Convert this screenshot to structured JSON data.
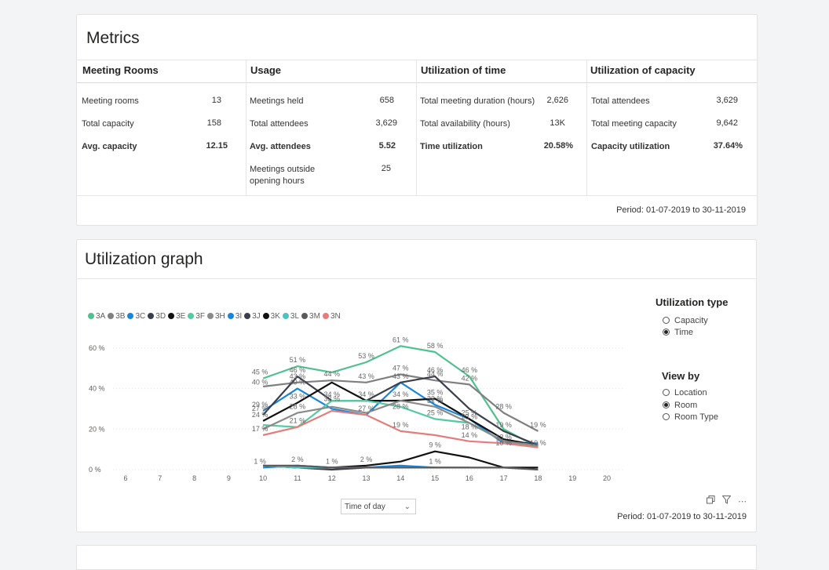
{
  "metrics": {
    "title": "Metrics",
    "columns": [
      {
        "header": "Meeting Rooms",
        "rows": [
          {
            "label": "Meeting rooms",
            "value": "13",
            "bold": false
          },
          {
            "label": "Total capacity",
            "value": "158",
            "bold": false
          },
          {
            "label": "Avg. capacity",
            "value": "12.15",
            "bold": true
          }
        ]
      },
      {
        "header": "Usage",
        "rows": [
          {
            "label": "Meetings held",
            "value": "658",
            "bold": false
          },
          {
            "label": "Total attendees",
            "value": "3,629",
            "bold": false
          },
          {
            "label": "Avg. attendees",
            "value": "5.52",
            "bold": true
          },
          {
            "label": "Meetings outside opening hours",
            "value": "25",
            "bold": false
          }
        ]
      },
      {
        "header": "Utilization of time",
        "rows": [
          {
            "label": "Total meeting duration (hours)",
            "value": "2,626",
            "bold": false
          },
          {
            "label": "Total availability (hours)",
            "value": "13K",
            "bold": false
          },
          {
            "label": "Time utilization",
            "value": "20.58%",
            "bold": true
          }
        ]
      },
      {
        "header": "Utilization of capacity",
        "rows": [
          {
            "label": "Total attendees",
            "value": "3,629",
            "bold": false
          },
          {
            "label": "Total meeting capacity",
            "value": "9,642",
            "bold": false
          },
          {
            "label": "Capacity utilization",
            "value": "37.64%",
            "bold": true
          }
        ]
      }
    ],
    "period": "Period: 01-07-2019 to 30-11-2019"
  },
  "graph": {
    "title": "Utilization graph",
    "period": "Period: 01-07-2019 to 30-11-2019",
    "axis_dropdown": "Time of day",
    "utilization_type": {
      "title": "Utilization type",
      "options": [
        {
          "label": "Capacity",
          "selected": false
        },
        {
          "label": "Time",
          "selected": true
        }
      ]
    },
    "view_by": {
      "title": "View by",
      "options": [
        {
          "label": "Location",
          "selected": false
        },
        {
          "label": "Room",
          "selected": true
        },
        {
          "label": "Room Type",
          "selected": false
        }
      ]
    },
    "icons": [
      "copy-icon",
      "filter-icon",
      "more-options-icon"
    ]
  },
  "chart_data": {
    "type": "line",
    "x": [
      6,
      7,
      8,
      9,
      10,
      11,
      12,
      13,
      14,
      15,
      16,
      17,
      18,
      19,
      20
    ],
    "xlim": [
      6,
      20
    ],
    "ylim": [
      0,
      70
    ],
    "yticks": [
      0,
      20,
      40,
      60
    ],
    "ytick_labels": [
      "0 %",
      "20 %",
      "40 %",
      "60 %"
    ],
    "grid": true,
    "legend": "top-left",
    "series": [
      {
        "name": "3A",
        "color": "#4fc18e",
        "points": [
          [
            10,
            45
          ],
          [
            11,
            51
          ],
          [
            12,
            48
          ],
          [
            13,
            53
          ],
          [
            14,
            61
          ],
          [
            15,
            58
          ],
          [
            16,
            46
          ],
          [
            17,
            20
          ],
          [
            18,
            11
          ]
        ]
      },
      {
        "name": "3B",
        "color": "#808080",
        "points": [
          [
            10,
            41
          ],
          [
            11,
            43
          ],
          [
            12,
            44
          ],
          [
            13,
            43
          ],
          [
            14,
            47
          ],
          [
            15,
            44
          ],
          [
            16,
            42
          ],
          [
            17,
            28
          ],
          [
            18,
            19
          ]
        ]
      },
      {
        "name": "3C",
        "color": "#1a86d9",
        "points": [
          [
            10,
            29
          ],
          [
            11,
            40
          ],
          [
            12,
            30
          ],
          [
            13,
            27
          ],
          [
            14,
            43
          ],
          [
            15,
            32
          ],
          [
            16,
            25
          ],
          [
            17,
            13
          ],
          [
            18,
            13
          ]
        ]
      },
      {
        "name": "3D",
        "color": "#3a3f4b",
        "points": [
          [
            10,
            27
          ],
          [
            11,
            46
          ],
          [
            12,
            34
          ],
          [
            13,
            34
          ],
          [
            14,
            43
          ],
          [
            15,
            46
          ],
          [
            16,
            30
          ],
          [
            17,
            19
          ],
          [
            18,
            12
          ]
        ]
      },
      {
        "name": "3E",
        "color": "#111111",
        "points": [
          [
            10,
            24
          ],
          [
            11,
            33
          ],
          [
            12,
            43
          ],
          [
            13,
            34
          ],
          [
            14,
            34
          ],
          [
            15,
            35
          ],
          [
            16,
            25
          ],
          [
            17,
            15
          ],
          [
            18,
            12
          ]
        ]
      },
      {
        "name": "3F",
        "color": "#55c9a0",
        "points": [
          [
            10,
            22
          ],
          [
            11,
            21
          ],
          [
            12,
            34
          ],
          [
            13,
            34
          ],
          [
            14,
            31
          ],
          [
            15,
            25
          ],
          [
            16,
            23
          ],
          [
            17,
            14
          ],
          [
            18,
            11
          ]
        ]
      },
      {
        "name": "3H",
        "color": "#8a8a8a",
        "points": [
          [
            10,
            20
          ],
          [
            11,
            28
          ],
          [
            12,
            31
          ],
          [
            13,
            28
          ],
          [
            14,
            34
          ],
          [
            15,
            31
          ],
          [
            16,
            23
          ],
          [
            17,
            14
          ],
          [
            18,
            12
          ]
        ]
      },
      {
        "name": "3I",
        "color": "#1a86d9",
        "points": [
          [
            10,
            1
          ],
          [
            11,
            2
          ],
          [
            12,
            1
          ],
          [
            13,
            1
          ],
          [
            14,
            2
          ],
          [
            15,
            1
          ],
          [
            16,
            1
          ]
        ]
      },
      {
        "name": "3J",
        "color": "#3a3f4b",
        "points": [
          [
            10,
            2
          ],
          [
            11,
            1
          ],
          [
            12,
            0
          ],
          [
            13,
            1
          ],
          [
            14,
            1
          ],
          [
            15,
            1
          ]
        ]
      },
      {
        "name": "3K",
        "color": "#111111",
        "points": [
          [
            10,
            2
          ],
          [
            11,
            1
          ],
          [
            12,
            1
          ],
          [
            13,
            2
          ],
          [
            14,
            4
          ],
          [
            15,
            9
          ],
          [
            16,
            6
          ],
          [
            17,
            1
          ],
          [
            18,
            1
          ]
        ]
      },
      {
        "name": "3L",
        "color": "#4fc1c1",
        "points": [
          [
            10,
            2
          ],
          [
            11,
            1
          ],
          [
            12,
            1
          ],
          [
            13,
            1
          ],
          [
            14,
            1
          ],
          [
            15,
            1
          ]
        ]
      },
      {
        "name": "3M",
        "color": "#5a5a5a",
        "points": [
          [
            10,
            2
          ],
          [
            11,
            2
          ],
          [
            12,
            1
          ],
          [
            13,
            1
          ],
          [
            14,
            1
          ],
          [
            15,
            1
          ],
          [
            16,
            1
          ],
          [
            17,
            1
          ],
          [
            18,
            0
          ]
        ]
      },
      {
        "name": "3N",
        "color": "#e57c7c",
        "points": [
          [
            10,
            17
          ],
          [
            11,
            21
          ],
          [
            12,
            29
          ],
          [
            13,
            27
          ],
          [
            14,
            19
          ],
          [
            15,
            17
          ],
          [
            16,
            14
          ],
          [
            17,
            13
          ],
          [
            18,
            11
          ]
        ]
      }
    ],
    "data_labels": [
      {
        "x": 10,
        "y": 45,
        "text": "45 %"
      },
      {
        "x": 10,
        "y": 40,
        "text": "40 %"
      },
      {
        "x": 10,
        "y": 27,
        "text": "27 %"
      },
      {
        "x": 10,
        "y": 29,
        "text": "29 %"
      },
      {
        "x": 10,
        "y": 24,
        "text": "24 %"
      },
      {
        "x": 10,
        "y": 17,
        "text": "17 %"
      },
      {
        "x": 10,
        "y": 1,
        "text": "1 %"
      },
      {
        "x": 11,
        "y": 51,
        "text": "51 %"
      },
      {
        "x": 11,
        "y": 43,
        "text": "43 %"
      },
      {
        "x": 11,
        "y": 46,
        "text": "46 %"
      },
      {
        "x": 11,
        "y": 40,
        "text": "40 %"
      },
      {
        "x": 11,
        "y": 33,
        "text": "33 %"
      },
      {
        "x": 11,
        "y": 28,
        "text": "28 %"
      },
      {
        "x": 11,
        "y": 21,
        "text": "21 %"
      },
      {
        "x": 11,
        "y": 2,
        "text": "2 %"
      },
      {
        "x": 12,
        "y": 44,
        "text": "44 %"
      },
      {
        "x": 12,
        "y": 34,
        "text": "34 %"
      },
      {
        "x": 12,
        "y": 32,
        "text": "32 %"
      },
      {
        "x": 12,
        "y": 1,
        "text": "1 %"
      },
      {
        "x": 13,
        "y": 53,
        "text": "53 %"
      },
      {
        "x": 13,
        "y": 43,
        "text": "43 %"
      },
      {
        "x": 13,
        "y": 34,
        "text": "34 %"
      },
      {
        "x": 13,
        "y": 27,
        "text": "27 %"
      },
      {
        "x": 13,
        "y": 2,
        "text": "2 %"
      },
      {
        "x": 14,
        "y": 61,
        "text": "61 %"
      },
      {
        "x": 14,
        "y": 47,
        "text": "47 %"
      },
      {
        "x": 14,
        "y": 43,
        "text": "43 %"
      },
      {
        "x": 14,
        "y": 34,
        "text": "34 %"
      },
      {
        "x": 14,
        "y": 28,
        "text": "28 %"
      },
      {
        "x": 14,
        "y": 19,
        "text": "19 %"
      },
      {
        "x": 15,
        "y": 58,
        "text": "58 %"
      },
      {
        "x": 15,
        "y": 44,
        "text": "44 %"
      },
      {
        "x": 15,
        "y": 46,
        "text": "46 %"
      },
      {
        "x": 15,
        "y": 32,
        "text": "32 %"
      },
      {
        "x": 15,
        "y": 35,
        "text": "35 %"
      },
      {
        "x": 15,
        "y": 31,
        "text": "31 %"
      },
      {
        "x": 15,
        "y": 25,
        "text": "25 %"
      },
      {
        "x": 15,
        "y": 9,
        "text": "9 %"
      },
      {
        "x": 15,
        "y": 1,
        "text": "1 %"
      },
      {
        "x": 16,
        "y": 46,
        "text": "46 %"
      },
      {
        "x": 16,
        "y": 42,
        "text": "42 %"
      },
      {
        "x": 16,
        "y": 25,
        "text": "25 %"
      },
      {
        "x": 16,
        "y": 23,
        "text": "23 %"
      },
      {
        "x": 16,
        "y": 18,
        "text": "18 %"
      },
      {
        "x": 16,
        "y": 14,
        "text": "14 %"
      },
      {
        "x": 17,
        "y": 28,
        "text": "28 %"
      },
      {
        "x": 17,
        "y": 19,
        "text": "19 %"
      },
      {
        "x": 17,
        "y": 13,
        "text": "13 %"
      },
      {
        "x": 17,
        "y": 10,
        "text": "10 %"
      },
      {
        "x": 18,
        "y": 10,
        "text": "10 %"
      },
      {
        "x": 18,
        "y": 19,
        "text": "19 %"
      }
    ]
  }
}
